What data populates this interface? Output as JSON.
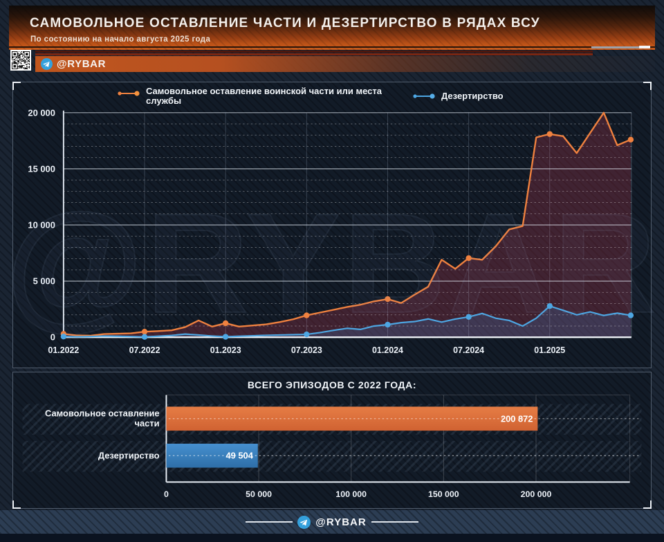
{
  "header": {
    "title": "САМОВОЛЬНОЕ ОСТАВЛЕНИЕ ЧАСТИ И ДЕЗЕРТИРСТВО В РЯДАХ ВСУ",
    "subtitle": "По состоянию на начало августа 2025 года",
    "channel_badge": "@RYBAR"
  },
  "footer": {
    "channel_badge": "@RYBAR"
  },
  "watermark": "@RYBAR",
  "colors": {
    "accent_orange": "#ef813f",
    "accent_blue": "#4da6e2",
    "orange_area_fill": "rgba(172,55,75,0.30)",
    "blue_area_fill": "rgba(60,140,215,0.20)",
    "bar_orange": "#dc6f3e",
    "bar_blue": "#3a80bf",
    "header_orange": "#c85c1d"
  },
  "chart_data": [
    {
      "type": "line",
      "x_start": "01.2022",
      "x_end": "07.2025",
      "points": 43,
      "x_tick_labels": [
        "01.2022",
        "07.2022",
        "01.2023",
        "07.2023",
        "01.2024",
        "07.2024",
        "01.2025"
      ],
      "ylim": [
        0,
        20000
      ],
      "y_ticks": [
        0,
        5000,
        10000,
        15000,
        20000
      ],
      "y_tick_labels": [
        "0",
        "5 000",
        "10 000",
        "15 000",
        "20 000"
      ],
      "legend_position": "top",
      "grid": "major solid, minor dotted every 1000",
      "series": [
        {
          "name": "Самовольное оставление воинской части или места службы",
          "color": "#ef813f",
          "fill": "rgba(172,55,75,0.30)",
          "values": [
            300,
            160,
            140,
            290,
            320,
            350,
            500,
            550,
            620,
            900,
            1500,
            950,
            1250,
            950,
            1050,
            1150,
            1350,
            1600,
            1950,
            2200,
            2450,
            2700,
            2900,
            3200,
            3400,
            3050,
            3800,
            4500,
            6900,
            6100,
            7050,
            6900,
            8100,
            9600,
            9900,
            17800,
            18100,
            17900,
            16400,
            18200,
            20000,
            17100,
            17600
          ]
        },
        {
          "name": "Дезертирство",
          "color": "#4da6e2",
          "fill": "rgba(60,140,215,0.20)",
          "values": [
            60,
            40,
            60,
            110,
            90,
            60,
            30,
            90,
            160,
            280,
            200,
            110,
            40,
            90,
            130,
            170,
            200,
            230,
            260,
            420,
            620,
            800,
            700,
            1000,
            1120,
            1300,
            1400,
            1630,
            1350,
            1620,
            1810,
            2120,
            1700,
            1500,
            1000,
            1700,
            2780,
            2400,
            2000,
            2260,
            1940,
            2150,
            1950
          ]
        }
      ]
    },
    {
      "type": "bar",
      "orientation": "horizontal",
      "title": "ВСЕГО ЭПИЗОДОВ С 2022 ГОДА:",
      "categories": [
        "Самовольное оставление части",
        "Дезертирство"
      ],
      "categories_lines": [
        [
          "Самовольное оставление",
          "части"
        ],
        [
          "Дезертирство"
        ]
      ],
      "values": [
        200872,
        49504
      ],
      "value_labels": [
        "200 872",
        "49 504"
      ],
      "bar_colors": [
        "#dc6f3e",
        "#3a80bf"
      ],
      "xlim": [
        0,
        250000
      ],
      "x_ticks": [
        0,
        50000,
        100000,
        150000,
        200000
      ],
      "x_tick_labels": [
        "0",
        "50 000",
        "100 000",
        "150 000",
        "200 000"
      ]
    }
  ]
}
